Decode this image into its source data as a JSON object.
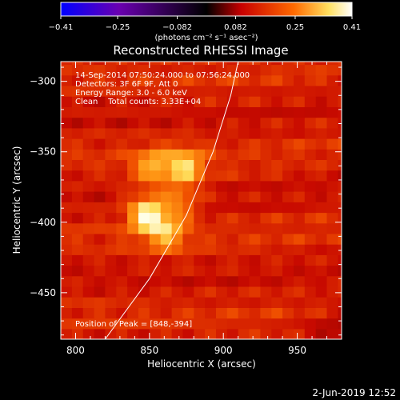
{
  "chart_data": {
    "type": "heatmap",
    "title": "Reconstructed RHESSI Image",
    "xlabel": "Heliocentric X (arcsec)",
    "ylabel": "Heliocentric Y (arcsec)",
    "xlim": [
      790,
      980
    ],
    "ylim": [
      -483,
      -286
    ],
    "x_ticks": [
      800,
      850,
      900,
      950
    ],
    "y_ticks": [
      -300,
      -350,
      -400,
      -450
    ],
    "colorbar": {
      "range": [
        -0.41,
        0.41
      ],
      "ticks": [
        "-0.41",
        "-0.25",
        "-0.082",
        "0.082",
        "0.25",
        "0.41"
      ],
      "unit_label": "(photons cm⁻² s⁻¹ asec⁻²)",
      "colors": [
        "#0000ff",
        "#6a00b0",
        "#000000",
        "#c80000",
        "#ff6a00",
        "#ffe060",
        "#ffffff"
      ]
    },
    "annotations": [
      "14-Sep-2014 07:50:24.000 to 07:56:24.000",
      "Detectors: 3F 6F 9F, Att 0",
      "Energy Range: 3.0 - 6.0 keV",
      "Clean    Total counts: 3.33E+04"
    ],
    "peak_label": "Position of Peak = [848,-394]",
    "peak": [
      848,
      -394
    ],
    "sources": [
      {
        "x": 848,
        "y": -394,
        "intensity": 1.0
      },
      {
        "x": 874,
        "y": -360,
        "intensity": 0.78
      },
      {
        "x": 852,
        "y": -360,
        "intensity": 0.6
      },
      {
        "x": 862,
        "y": -407,
        "intensity": 0.62
      },
      {
        "x": 870,
        "y": -385,
        "intensity": 0.45
      }
    ],
    "limb_points": [
      [
        820,
        -483
      ],
      [
        850,
        -440
      ],
      [
        875,
        -395
      ],
      [
        893,
        -350
      ],
      [
        905,
        -310
      ],
      [
        910,
        -286
      ]
    ]
  },
  "footer": {
    "date": "2-Jun-2019 12:52"
  }
}
